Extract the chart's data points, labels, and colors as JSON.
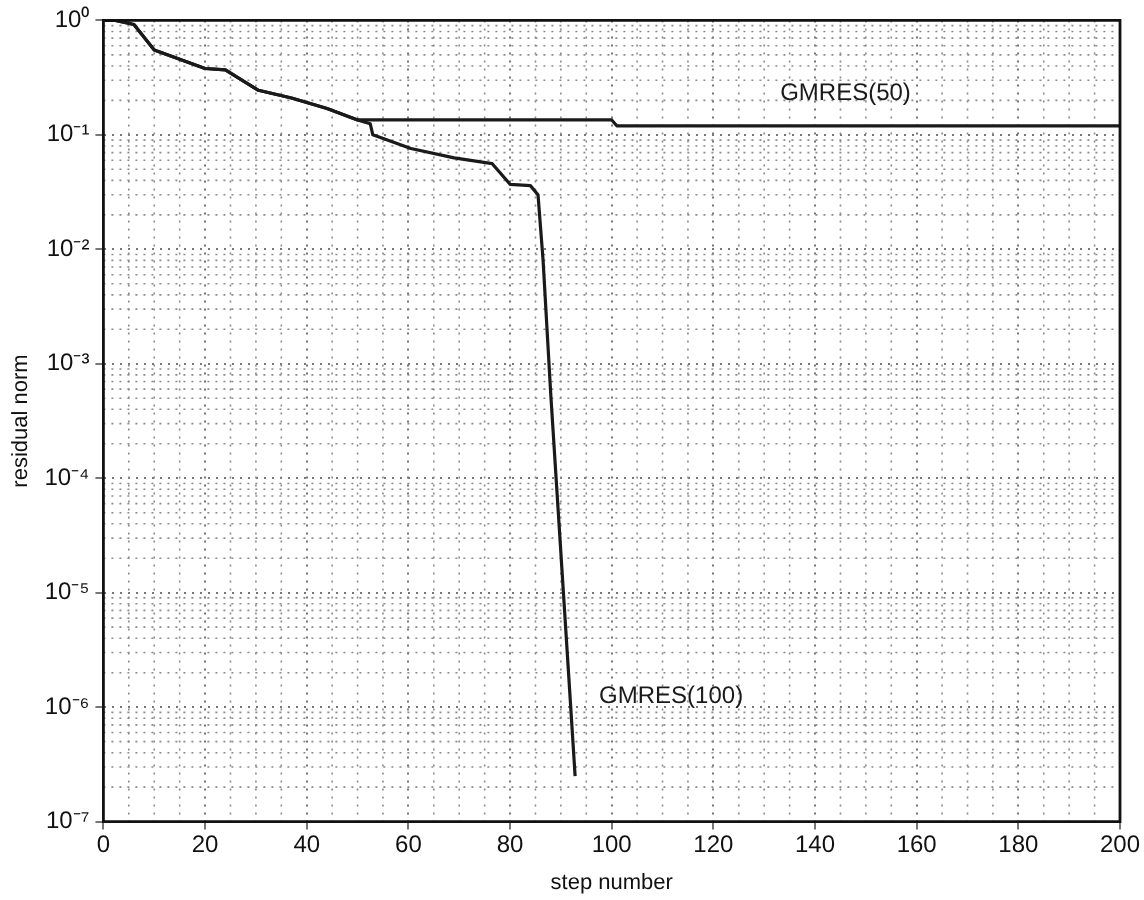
{
  "chart_data": {
    "type": "line",
    "xlabel": "step number",
    "ylabel": "residual norm",
    "xlim": [
      0,
      200
    ],
    "xticks": [
      0,
      20,
      40,
      60,
      80,
      100,
      120,
      140,
      160,
      180,
      200
    ],
    "ylim": [
      1e-07,
      1
    ],
    "log": "y",
    "yticks": [
      {
        "value": 1e-07,
        "label": "10⁻⁷"
      },
      {
        "value": 1e-06,
        "label": "10⁻⁶"
      },
      {
        "value": 1e-05,
        "label": "10⁻⁵"
      },
      {
        "value": 0.0001,
        "label": "10⁻⁴"
      },
      {
        "value": 0.001,
        "label": "10⁻³"
      },
      {
        "value": 0.01,
        "label": "10⁻²"
      },
      {
        "value": 0.1,
        "label": "10⁻¹"
      },
      {
        "value": 1,
        "label": "10⁰"
      }
    ],
    "grid": true,
    "line_style": "solid",
    "marker": "none",
    "series": [
      {
        "name": "GMRES(50)",
        "color": "#1a1a1a",
        "x": [
          0,
          2.4,
          6,
          10,
          20,
          24,
          30.5,
          37,
          44,
          50,
          100,
          101,
          200
        ],
        "values": [
          1,
          1,
          0.92,
          0.55,
          0.38,
          0.37,
          0.245,
          0.21,
          0.17,
          0.135,
          0.135,
          0.12,
          0.12
        ]
      },
      {
        "name": "GMRES(100)",
        "color": "#1a1a1a",
        "x": [
          0,
          2.4,
          6,
          10,
          20,
          24,
          30.5,
          37,
          44,
          50,
          52.5,
          53,
          60.5,
          69,
          76.5,
          80,
          84,
          85.5,
          86.5,
          88,
          92.8
        ],
        "values": [
          1,
          1,
          0.92,
          0.55,
          0.38,
          0.37,
          0.245,
          0.21,
          0.17,
          0.135,
          0.125,
          0.1,
          0.076,
          0.063,
          0.056,
          0.037,
          0.036,
          0.03,
          0.008,
          0.00055,
          2.5e-07
        ]
      }
    ]
  }
}
